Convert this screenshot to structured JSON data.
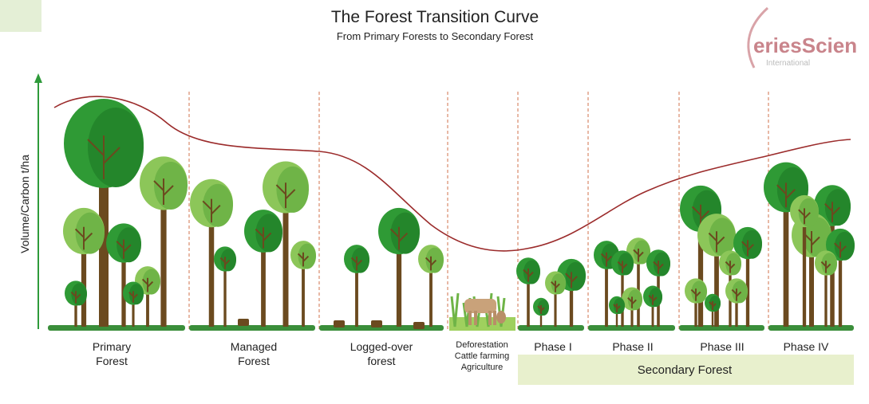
{
  "title": "The Forest Transition Curve",
  "subtitle": "From Primary Forests to Secondary Forest",
  "y_axis_label": "Volume/Carbon t/ha",
  "logo": {
    "name": "eriesScien",
    "tagline": "International"
  },
  "stages": [
    [
      "Primary",
      "Forest"
    ],
    [
      "Managed",
      "Forest"
    ],
    [
      "Logged-over",
      "forest"
    ],
    [
      "Deforestation",
      "Cattle farming",
      "Agriculture"
    ],
    [
      "Phase I"
    ],
    [
      "Phase II"
    ],
    [
      "Phase III"
    ],
    [
      "Phase IV"
    ]
  ],
  "secondary_forest_label": "Secondary Forest"
}
